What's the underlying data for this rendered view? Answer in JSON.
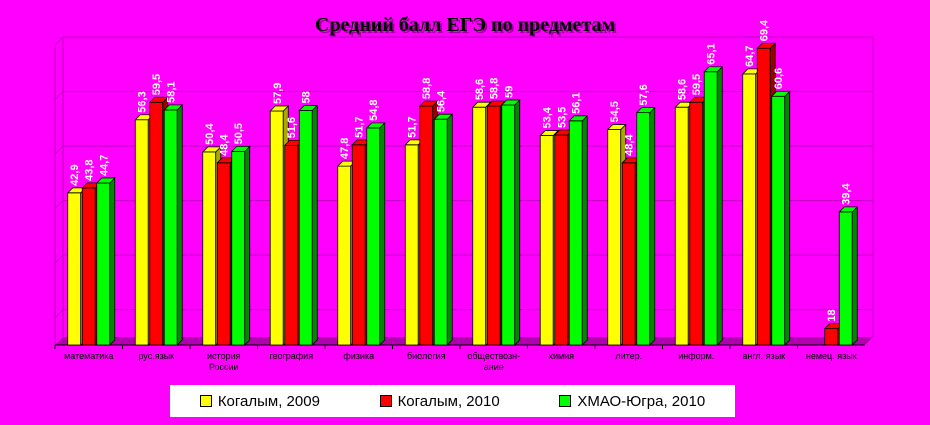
{
  "chart_data": {
    "type": "bar",
    "title": "Средний балл ЕГЭ по предметам",
    "categories": [
      "математика",
      "рус.язык",
      "история России",
      "география",
      "физика",
      "биология",
      "обществознание",
      "химия",
      "литер.",
      "информ.",
      "англ. язык",
      "немец. язык"
    ],
    "category_lines": [
      [
        "математика"
      ],
      [
        "рус.язык"
      ],
      [
        "история",
        "России"
      ],
      [
        "география"
      ],
      [
        "физика"
      ],
      [
        "биология"
      ],
      [
        "обществозн-",
        "ание"
      ],
      [
        "химия"
      ],
      [
        "литер."
      ],
      [
        "информ."
      ],
      [
        "англ. язык"
      ],
      [
        "немец. язык"
      ]
    ],
    "series": [
      {
        "name": "Когалым, 2009",
        "color": "#ffff00",
        "side": "#a8a800",
        "values": [
          42.9,
          56.3,
          50.4,
          57.9,
          47.8,
          51.7,
          58.6,
          53.4,
          54.5,
          58.6,
          64.7,
          null
        ],
        "labels": [
          "42,9",
          "56,3",
          "50,4",
          "57,9",
          "47,8",
          "51,7",
          "58,6",
          "53,4",
          "54,5",
          "58,6",
          "64,7",
          ""
        ]
      },
      {
        "name": "Когалым, 2010",
        "color": "#ff0000",
        "side": "#990000",
        "values": [
          43.8,
          59.5,
          48.4,
          51.6,
          51.7,
          58.8,
          58.8,
          53.5,
          48.4,
          59.5,
          69.4,
          18
        ],
        "labels": [
          "43,8",
          "59,5",
          "48,4",
          "51,6",
          "51,7",
          "58,8",
          "58,8",
          "53,5",
          "48,4",
          "59,5",
          "69,4",
          "18"
        ]
      },
      {
        "name": "ХМАО-Югра, 2010",
        "color": "#00ff00",
        "side": "#008800",
        "values": [
          44.7,
          58.1,
          50.5,
          58.0,
          54.8,
          56.4,
          59.0,
          56.1,
          57.6,
          65.1,
          60.6,
          39.4
        ],
        "labels": [
          "44,7",
          "58,1",
          "50,5",
          "58",
          "54,8",
          "56,4",
          "59",
          "56,1",
          "57,6",
          "65,1",
          "60,6",
          "39,4"
        ]
      }
    ],
    "ylim": [
      15,
      70
    ],
    "grid": true,
    "legend_position": "bottom"
  }
}
